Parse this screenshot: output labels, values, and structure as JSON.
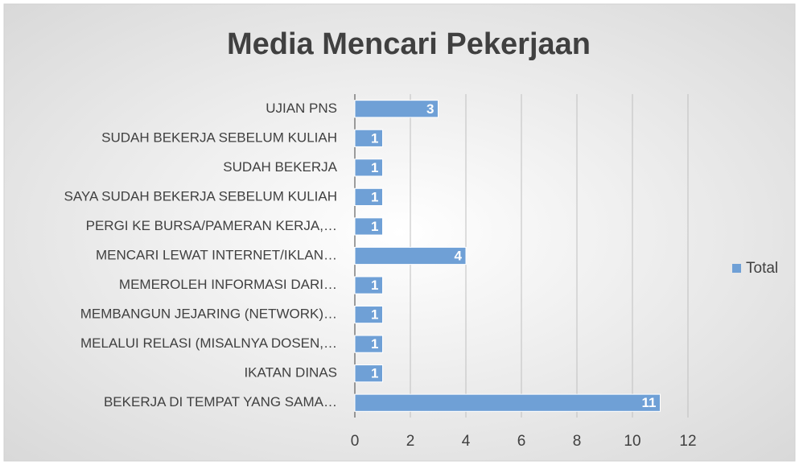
{
  "chart_data": {
    "type": "bar",
    "orientation": "horizontal",
    "title": "Media Mencari Pekerjaan",
    "categories": [
      "UJIAN PNS",
      "SUDAH BEKERJA SEBELUM KULIAH",
      "SUDAH BEKERJA",
      "SAYA SUDAH BEKERJA SEBELUM KULIAH",
      "PERGI KE BURSA/PAMERAN KERJA,…",
      "MENCARI LEWAT INTERNET/IKLAN…",
      "MEMEROLEH INFORMASI DARI…",
      "MEMBANGUN JEJARING (NETWORK)…",
      "MELALUI RELASI (MISALNYA DOSEN,…",
      "IKATAN DINAS",
      "BEKERJA DI TEMPAT YANG SAMA…"
    ],
    "series": [
      {
        "name": "Total",
        "color": "#6fa0d6",
        "values": [
          3,
          1,
          1,
          1,
          1,
          4,
          1,
          1,
          1,
          1,
          11
        ]
      }
    ],
    "xlim": [
      0,
      12
    ],
    "xticks": [
      0,
      2,
      4,
      6,
      8,
      10,
      12
    ],
    "grid": true,
    "legend": "right"
  }
}
